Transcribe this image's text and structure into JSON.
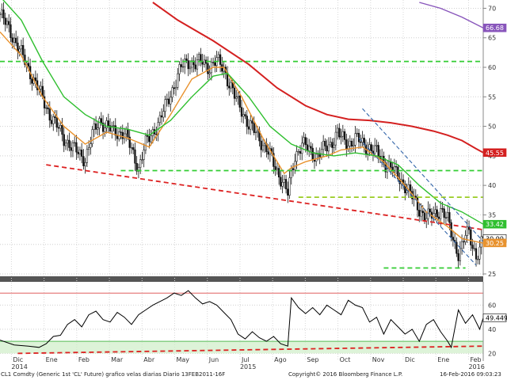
{
  "chart_data": [
    {
      "type": "candlestick",
      "panel": "price",
      "ylim": [
        25,
        71
      ],
      "y_ticks": [
        "25",
        "30",
        "35",
        "40",
        "45",
        "50",
        "55",
        "60",
        "65",
        "70"
      ],
      "x_months": [
        {
          "label": "Dic",
          "year": "2014"
        },
        {
          "label": "Ene",
          "year": ""
        },
        {
          "label": "Feb",
          "year": ""
        },
        {
          "label": "Mar",
          "year": ""
        },
        {
          "label": "Abr",
          "year": ""
        },
        {
          "label": "May",
          "year": ""
        },
        {
          "label": "Jun",
          "year": ""
        },
        {
          "label": "Jul",
          "year": "2015"
        },
        {
          "label": "Ago",
          "year": ""
        },
        {
          "label": "Sep",
          "year": ""
        },
        {
          "label": "Oct",
          "year": ""
        },
        {
          "label": "Nov",
          "year": ""
        },
        {
          "label": "Dic",
          "year": ""
        },
        {
          "label": "Ene",
          "year": ""
        },
        {
          "label": "Feb",
          "year": "2016"
        }
      ],
      "price_path": [
        [
          0,
          69
        ],
        [
          3,
          66
        ],
        [
          7,
          61
        ],
        [
          11,
          56
        ],
        [
          14,
          52
        ],
        [
          18,
          48
        ],
        [
          21,
          46
        ],
        [
          24,
          44.5
        ],
        [
          26,
          48.5
        ],
        [
          28,
          51
        ],
        [
          30,
          50
        ],
        [
          32,
          49
        ],
        [
          35,
          49
        ],
        [
          37,
          46
        ],
        [
          39,
          43
        ],
        [
          41,
          47
        ],
        [
          43,
          49
        ],
        [
          45,
          51
        ],
        [
          47,
          54
        ],
        [
          49,
          57
        ],
        [
          51,
          60
        ],
        [
          53,
          61
        ],
        [
          55,
          60.5
        ],
        [
          57,
          61
        ],
        [
          59,
          60
        ],
        [
          61,
          61
        ],
        [
          63,
          60
        ],
        [
          64,
          58
        ],
        [
          66,
          55
        ],
        [
          68,
          53
        ],
        [
          70,
          50
        ],
        [
          72,
          49
        ],
        [
          74,
          47
        ],
        [
          76,
          45
        ],
        [
          78,
          42.5
        ],
        [
          80,
          40
        ],
        [
          81,
          38.5
        ],
        [
          82,
          42
        ],
        [
          83,
          45
        ],
        [
          85,
          47
        ],
        [
          87,
          46
        ],
        [
          89,
          45
        ],
        [
          91,
          46
        ],
        [
          93,
          47
        ],
        [
          95,
          49
        ],
        [
          96,
          48
        ],
        [
          98,
          47
        ],
        [
          100,
          48
        ],
        [
          102,
          47
        ],
        [
          104,
          46.5
        ],
        [
          106,
          45.5
        ],
        [
          108,
          44
        ],
        [
          110,
          43
        ],
        [
          112,
          41.5
        ],
        [
          114,
          40
        ],
        [
          116,
          38
        ],
        [
          118,
          36
        ],
        [
          120,
          34.5
        ],
        [
          122,
          35
        ],
        [
          124,
          36
        ],
        [
          126,
          34
        ],
        [
          127,
          32
        ],
        [
          128,
          30
        ],
        [
          129,
          28.5
        ],
        [
          130,
          29.5
        ],
        [
          131,
          31.5
        ],
        [
          132,
          32
        ],
        [
          133,
          30
        ],
        [
          134,
          28
        ],
        [
          135,
          29
        ],
        [
          136,
          30.99
        ]
      ],
      "series": [
        {
          "name": "",
          "color": "#e8922e",
          "points": [
            [
              0,
              66
            ],
            [
              6,
              62
            ],
            [
              12,
              55
            ],
            [
              18,
              50
            ],
            [
              24,
              47
            ],
            [
              30,
              49
            ],
            [
              36,
              48
            ],
            [
              42,
              46.5
            ],
            [
              48,
              52
            ],
            [
              54,
              58
            ],
            [
              60,
              60
            ],
            [
              63,
              60
            ],
            [
              68,
              55
            ],
            [
              74,
              48
            ],
            [
              80,
              42
            ],
            [
              82,
              43
            ],
            [
              86,
              44
            ],
            [
              92,
              45
            ],
            [
              96,
              46
            ],
            [
              102,
              46.5
            ],
            [
              108,
              44
            ],
            [
              114,
              40
            ],
            [
              120,
              35.5
            ],
            [
              126,
              33
            ],
            [
              130,
              31
            ],
            [
              136,
              30.2
            ]
          ]
        },
        {
          "name": "",
          "color": "#2fbf2f",
          "points": [
            [
              0,
              72
            ],
            [
              6,
              68
            ],
            [
              12,
              61
            ],
            [
              18,
              55
            ],
            [
              24,
              52
            ],
            [
              30,
              50
            ],
            [
              36,
              49.5
            ],
            [
              42,
              48.5
            ],
            [
              48,
              51
            ],
            [
              54,
              55
            ],
            [
              60,
              58.5
            ],
            [
              64,
              59
            ],
            [
              70,
              55
            ],
            [
              76,
              50
            ],
            [
              82,
              47
            ],
            [
              88,
              45.5
            ],
            [
              94,
              45
            ],
            [
              100,
              45.5
            ],
            [
              106,
              45
            ],
            [
              112,
              43.5
            ],
            [
              118,
              40
            ],
            [
              124,
              37
            ],
            [
              130,
              35.5
            ],
            [
              136,
              33.42
            ]
          ]
        },
        {
          "name": "",
          "color": "#d42020",
          "points": [
            [
              43,
              71
            ],
            [
              50,
              68
            ],
            [
              60,
              64.5
            ],
            [
              70,
              60.5
            ],
            [
              78,
              56.5
            ],
            [
              86,
              53.5
            ],
            [
              92,
              52
            ],
            [
              98,
              51.2
            ],
            [
              104,
              51
            ],
            [
              110,
              50.6
            ],
            [
              116,
              50
            ],
            [
              122,
              49.2
            ],
            [
              126,
              48.5
            ],
            [
              130,
              47.6
            ],
            [
              134,
              46.2
            ],
            [
              136,
              45.55
            ]
          ]
        },
        {
          "name": "",
          "color": "#8855bb",
          "points": [
            [
              118,
              71
            ],
            [
              124,
              70
            ],
            [
              130,
              68.5
            ],
            [
              136,
              66.68
            ]
          ]
        }
      ],
      "lines": [
        {
          "kind": "support",
          "color": "#dd2222",
          "dash": true,
          "points": [
            [
              13,
              43.5
            ],
            [
              136,
              32.5
            ]
          ]
        },
        {
          "kind": "level",
          "color": "#33cc33",
          "dash": true,
          "points": [
            [
              0,
              61
            ],
            [
              136,
              61
            ]
          ]
        },
        {
          "kind": "level",
          "color": "#33cc33",
          "dash": true,
          "points": [
            [
              34,
              42.5
            ],
            [
              136,
              42.5
            ]
          ]
        },
        {
          "kind": "level",
          "color": "#99cc22",
          "dash": true,
          "points": [
            [
              84,
              38
            ],
            [
              136,
              38
            ]
          ]
        },
        {
          "kind": "level",
          "color": "#33cc33",
          "dash": true,
          "points": [
            [
              108,
              26
            ],
            [
              131,
              26
            ]
          ]
        },
        {
          "kind": "channel",
          "color": "#3366aa",
          "dash": true,
          "points": [
            [
              101,
              48
            ],
            [
              134,
              26.5
            ]
          ]
        },
        {
          "kind": "channel",
          "color": "#3366aa",
          "dash": true,
          "points": [
            [
              102,
              53
            ],
            [
              136,
              30.5
            ]
          ]
        }
      ],
      "last_value_labels": [
        {
          "text": "66.68",
          "value": 66.68,
          "bg": "#8855bb",
          "fg": "#ffffff"
        },
        {
          "text": "45.55",
          "value": 45.55,
          "bg": "#d42020",
          "fg": "#ffffff"
        },
        {
          "text": "33.42",
          "value": 33.42,
          "bg": "#2fbf2f",
          "fg": "#ffffff"
        },
        {
          "text": "30.99",
          "value": 30.99,
          "bg": "#ffffff",
          "fg": "#000000"
        },
        {
          "text": "30.25",
          "value": 30.25,
          "bg": "#e8922e",
          "fg": "#ffffff"
        }
      ]
    },
    {
      "type": "line",
      "panel": "indicator",
      "ylim": [
        15,
        78
      ],
      "y_ticks": [
        "20",
        "40",
        "60"
      ],
      "overbought": 70,
      "oversold_band": [
        20,
        30
      ],
      "series": [
        {
          "name": "",
          "color": "#000000",
          "points": [
            [
              0,
              31
            ],
            [
              4,
              27
            ],
            [
              8,
              26
            ],
            [
              11,
              25
            ],
            [
              13,
              28
            ],
            [
              15,
              34
            ],
            [
              17,
              35
            ],
            [
              19,
              44
            ],
            [
              21,
              48
            ],
            [
              23,
              42
            ],
            [
              25,
              52
            ],
            [
              27,
              55
            ],
            [
              29,
              48
            ],
            [
              31,
              46
            ],
            [
              33,
              54
            ],
            [
              35,
              50
            ],
            [
              37,
              44
            ],
            [
              39,
              52
            ],
            [
              41,
              56
            ],
            [
              43,
              60
            ],
            [
              45,
              63
            ],
            [
              47,
              66
            ],
            [
              49,
              70
            ],
            [
              51,
              68
            ],
            [
              53,
              72
            ],
            [
              55,
              66
            ],
            [
              57,
              61
            ],
            [
              59,
              63
            ],
            [
              61,
              60
            ],
            [
              63,
              54
            ],
            [
              65,
              48
            ],
            [
              67,
              36
            ],
            [
              69,
              32
            ],
            [
              71,
              38
            ],
            [
              73,
              33
            ],
            [
              75,
              30
            ],
            [
              77,
              34
            ],
            [
              79,
              28
            ],
            [
              81,
              26
            ],
            [
              82,
              66
            ],
            [
              84,
              58
            ],
            [
              86,
              53
            ],
            [
              88,
              58
            ],
            [
              90,
              52
            ],
            [
              92,
              60
            ],
            [
              94,
              56
            ],
            [
              96,
              52
            ],
            [
              98,
              64
            ],
            [
              100,
              60
            ],
            [
              102,
              58
            ],
            [
              104,
              46
            ],
            [
              106,
              50
            ],
            [
              108,
              36
            ],
            [
              110,
              48
            ],
            [
              112,
              42
            ],
            [
              114,
              36
            ],
            [
              116,
              40
            ],
            [
              118,
              30
            ],
            [
              120,
              44
            ],
            [
              122,
              48
            ],
            [
              124,
              38
            ],
            [
              126,
              30
            ],
            [
              127,
              25
            ],
            [
              129,
              56
            ],
            [
              131,
              45
            ],
            [
              133,
              52
            ],
            [
              135,
              40
            ],
            [
              136,
              49.4496
            ]
          ]
        }
      ],
      "lines": [
        {
          "kind": "trend",
          "color": "#dd2222",
          "dash": true,
          "points": [
            [
              5,
              20
            ],
            [
              136,
              26
            ]
          ]
        }
      ],
      "last_value_label": {
        "text": "49.4496",
        "value": 49.4496
      }
    }
  ],
  "footer": {
    "left": "CL1 Comdty (Generic 1st 'CL' Future) grafico velas diarias  Diario 13FEB2011-16F",
    "center": "Copyright© 2016 Bloomberg Finance L.P.",
    "right": "16-Feb-2016 09:03:23"
  }
}
